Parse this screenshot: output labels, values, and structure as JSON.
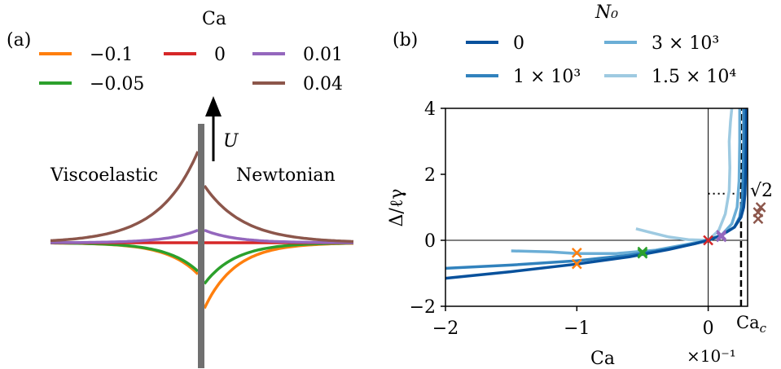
{
  "chart_data": [
    {
      "panel": "(a)",
      "type": "line",
      "legend_title": "Ca",
      "left_label": "Viscoelastic",
      "right_label": "Newtonian",
      "arrow_label": "U",
      "series": [
        {
          "name": "−0.1",
          "ca": -0.1,
          "color": "#ff7f0e",
          "left_peak": -0.55,
          "right_peak": -1.15
        },
        {
          "name": "−0.05",
          "ca": -0.05,
          "color": "#2ca02c",
          "left_peak": -0.5,
          "right_peak": -0.72
        },
        {
          "name": "0",
          "ca": 0,
          "color": "#d62728",
          "left_peak": 0.0,
          "right_peak": 0.0
        },
        {
          "name": "0.01",
          "ca": 0.01,
          "color": "#9467bd",
          "left_peak": 0.22,
          "right_peak": 0.22
        },
        {
          "name": "0.04",
          "ca": 0.04,
          "color": "#8c564b",
          "left_peak": 1.6,
          "right_peak": 1.0
        }
      ]
    },
    {
      "panel": "(b)",
      "type": "line",
      "xlabel": "Ca",
      "ylabel": "Δ/ℓγ",
      "x_multiplier": "×10⁻¹",
      "xlim": [
        -2,
        0.3
      ],
      "ylim": [
        -2,
        4
      ],
      "xticks": [
        "−2",
        "−1",
        "0"
      ],
      "yticks": [
        "−2",
        "0",
        "2",
        "4"
      ],
      "legend_title": "N₀",
      "ca_c_label": "Ca",
      "ca_c_sub": "c",
      "sqrt2_label": "√2",
      "ca_c": 0.25,
      "sqrt2": 1.414,
      "series": [
        {
          "name": "0",
          "color": "#08519c",
          "x": [
            -2.0,
            -1.5,
            -1.0,
            -0.6,
            -0.3,
            -0.1,
            0.0,
            0.1,
            0.2,
            0.25,
            0.27,
            0.28,
            0.285,
            0.29,
            0.29
          ],
          "y": [
            -1.15,
            -0.95,
            -0.72,
            -0.5,
            -0.28,
            -0.1,
            0.0,
            0.15,
            0.4,
            0.7,
            1.0,
            1.4,
            2.0,
            3.0,
            4.0
          ]
        },
        {
          "name": "1 × 10³",
          "color": "#3182bd",
          "x": [
            -2.0,
            -1.5,
            -1.0,
            -0.6,
            -0.3,
            -0.1,
            0.0,
            0.1,
            0.2,
            0.24,
            0.26,
            0.265,
            0.27,
            0.27
          ],
          "y": [
            -0.85,
            -0.75,
            -0.62,
            -0.45,
            -0.26,
            -0.1,
            0.0,
            0.15,
            0.4,
            0.7,
            1.2,
            2.0,
            3.0,
            4.0
          ]
        },
        {
          "name": "3 × 10³",
          "color": "#6baed6",
          "x": [
            -1.5,
            -1.2,
            -1.0,
            -0.7,
            -0.4,
            -0.2,
            0.0,
            0.1,
            0.18,
            0.22,
            0.235,
            0.24,
            0.24
          ],
          "y": [
            -0.32,
            -0.35,
            -0.4,
            -0.4,
            -0.3,
            -0.15,
            0.0,
            0.15,
            0.5,
            1.0,
            1.8,
            3.0,
            4.0
          ]
        },
        {
          "name": "1.5 × 10⁴",
          "color": "#9ecae1",
          "x": [
            -0.55,
            -0.45,
            -0.3,
            -0.15,
            0.0,
            0.08,
            0.13,
            0.16,
            0.165,
            0.16,
            0.17,
            0.18
          ],
          "y": [
            0.35,
            0.25,
            0.1,
            0.02,
            0.0,
            0.3,
            0.8,
            1.5,
            2.2,
            3.0,
            3.6,
            4.0
          ]
        }
      ],
      "markers": [
        {
          "x": -1.0,
          "y": -0.38,
          "color": "#ff7f0e"
        },
        {
          "x": -1.0,
          "y": -0.72,
          "color": "#ff7f0e"
        },
        {
          "x": -0.5,
          "y": -0.35,
          "color": "#2ca02c"
        },
        {
          "x": -0.5,
          "y": -0.4,
          "color": "#2ca02c"
        },
        {
          "x": 0.0,
          "y": 0.0,
          "color": "#d62728"
        },
        {
          "x": 0.1,
          "y": 0.1,
          "color": "#9467bd"
        },
        {
          "x": 0.1,
          "y": 0.16,
          "color": "#9467bd"
        },
        {
          "x": 0.38,
          "y": 0.65,
          "color": "#8c564b"
        },
        {
          "x": 0.38,
          "y": 0.85,
          "color": "#8c564b"
        },
        {
          "x": 0.4,
          "y": 1.0,
          "color": "#8c564b"
        }
      ]
    }
  ]
}
